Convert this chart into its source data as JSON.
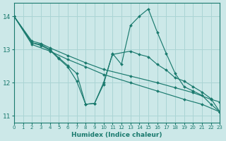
{
  "background_color": "#cce8e8",
  "grid_color": "#aad4d4",
  "line_color": "#1a7a6e",
  "marker_color": "#1a7a6e",
  "xlabel": "Humidex (Indice chaleur)",
  "xlim": [
    0,
    23
  ],
  "ylim": [
    10.8,
    14.4
  ],
  "yticks": [
    11,
    12,
    13,
    14
  ],
  "xticks": [
    0,
    1,
    2,
    3,
    4,
    5,
    6,
    7,
    8,
    9,
    10,
    11,
    12,
    13,
    14,
    15,
    16,
    17,
    18,
    19,
    20,
    21,
    22,
    23
  ],
  "lines": [
    {
      "x": [
        0,
        2,
        3,
        4,
        6,
        8,
        10,
        13,
        16,
        18,
        20,
        22,
        23
      ],
      "y": [
        14.0,
        13.25,
        13.18,
        13.05,
        12.82,
        12.6,
        12.4,
        12.2,
        12.0,
        11.85,
        11.7,
        11.5,
        11.42
      ]
    },
    {
      "x": [
        0,
        2,
        4,
        6,
        8,
        10,
        13,
        16,
        19,
        21,
        23
      ],
      "y": [
        14.0,
        13.15,
        12.95,
        12.7,
        12.48,
        12.25,
        12.0,
        11.75,
        11.5,
        11.35,
        11.12
      ]
    },
    {
      "x": [
        0,
        2,
        3,
        4,
        5,
        6,
        7,
        8,
        9,
        10,
        11,
        13,
        14,
        15,
        16,
        17,
        18,
        19,
        20,
        21,
        22,
        23
      ],
      "y": [
        14.0,
        13.2,
        13.15,
        13.0,
        12.75,
        12.52,
        12.28,
        11.35,
        11.38,
        12.0,
        12.85,
        12.95,
        12.85,
        12.78,
        12.55,
        12.38,
        12.15,
        12.05,
        11.88,
        11.72,
        11.52,
        11.12
      ]
    },
    {
      "x": [
        0,
        2,
        3,
        4,
        5,
        6,
        7,
        8,
        9,
        10,
        11,
        12,
        13,
        14,
        15,
        16,
        17,
        18,
        19,
        20,
        21,
        22,
        23
      ],
      "y": [
        14.0,
        13.2,
        13.12,
        12.98,
        12.72,
        12.48,
        12.05,
        11.35,
        11.38,
        11.95,
        12.88,
        12.55,
        13.72,
        14.0,
        14.22,
        13.52,
        12.88,
        12.28,
        11.88,
        11.75,
        11.62,
        11.35,
        11.12
      ]
    }
  ]
}
